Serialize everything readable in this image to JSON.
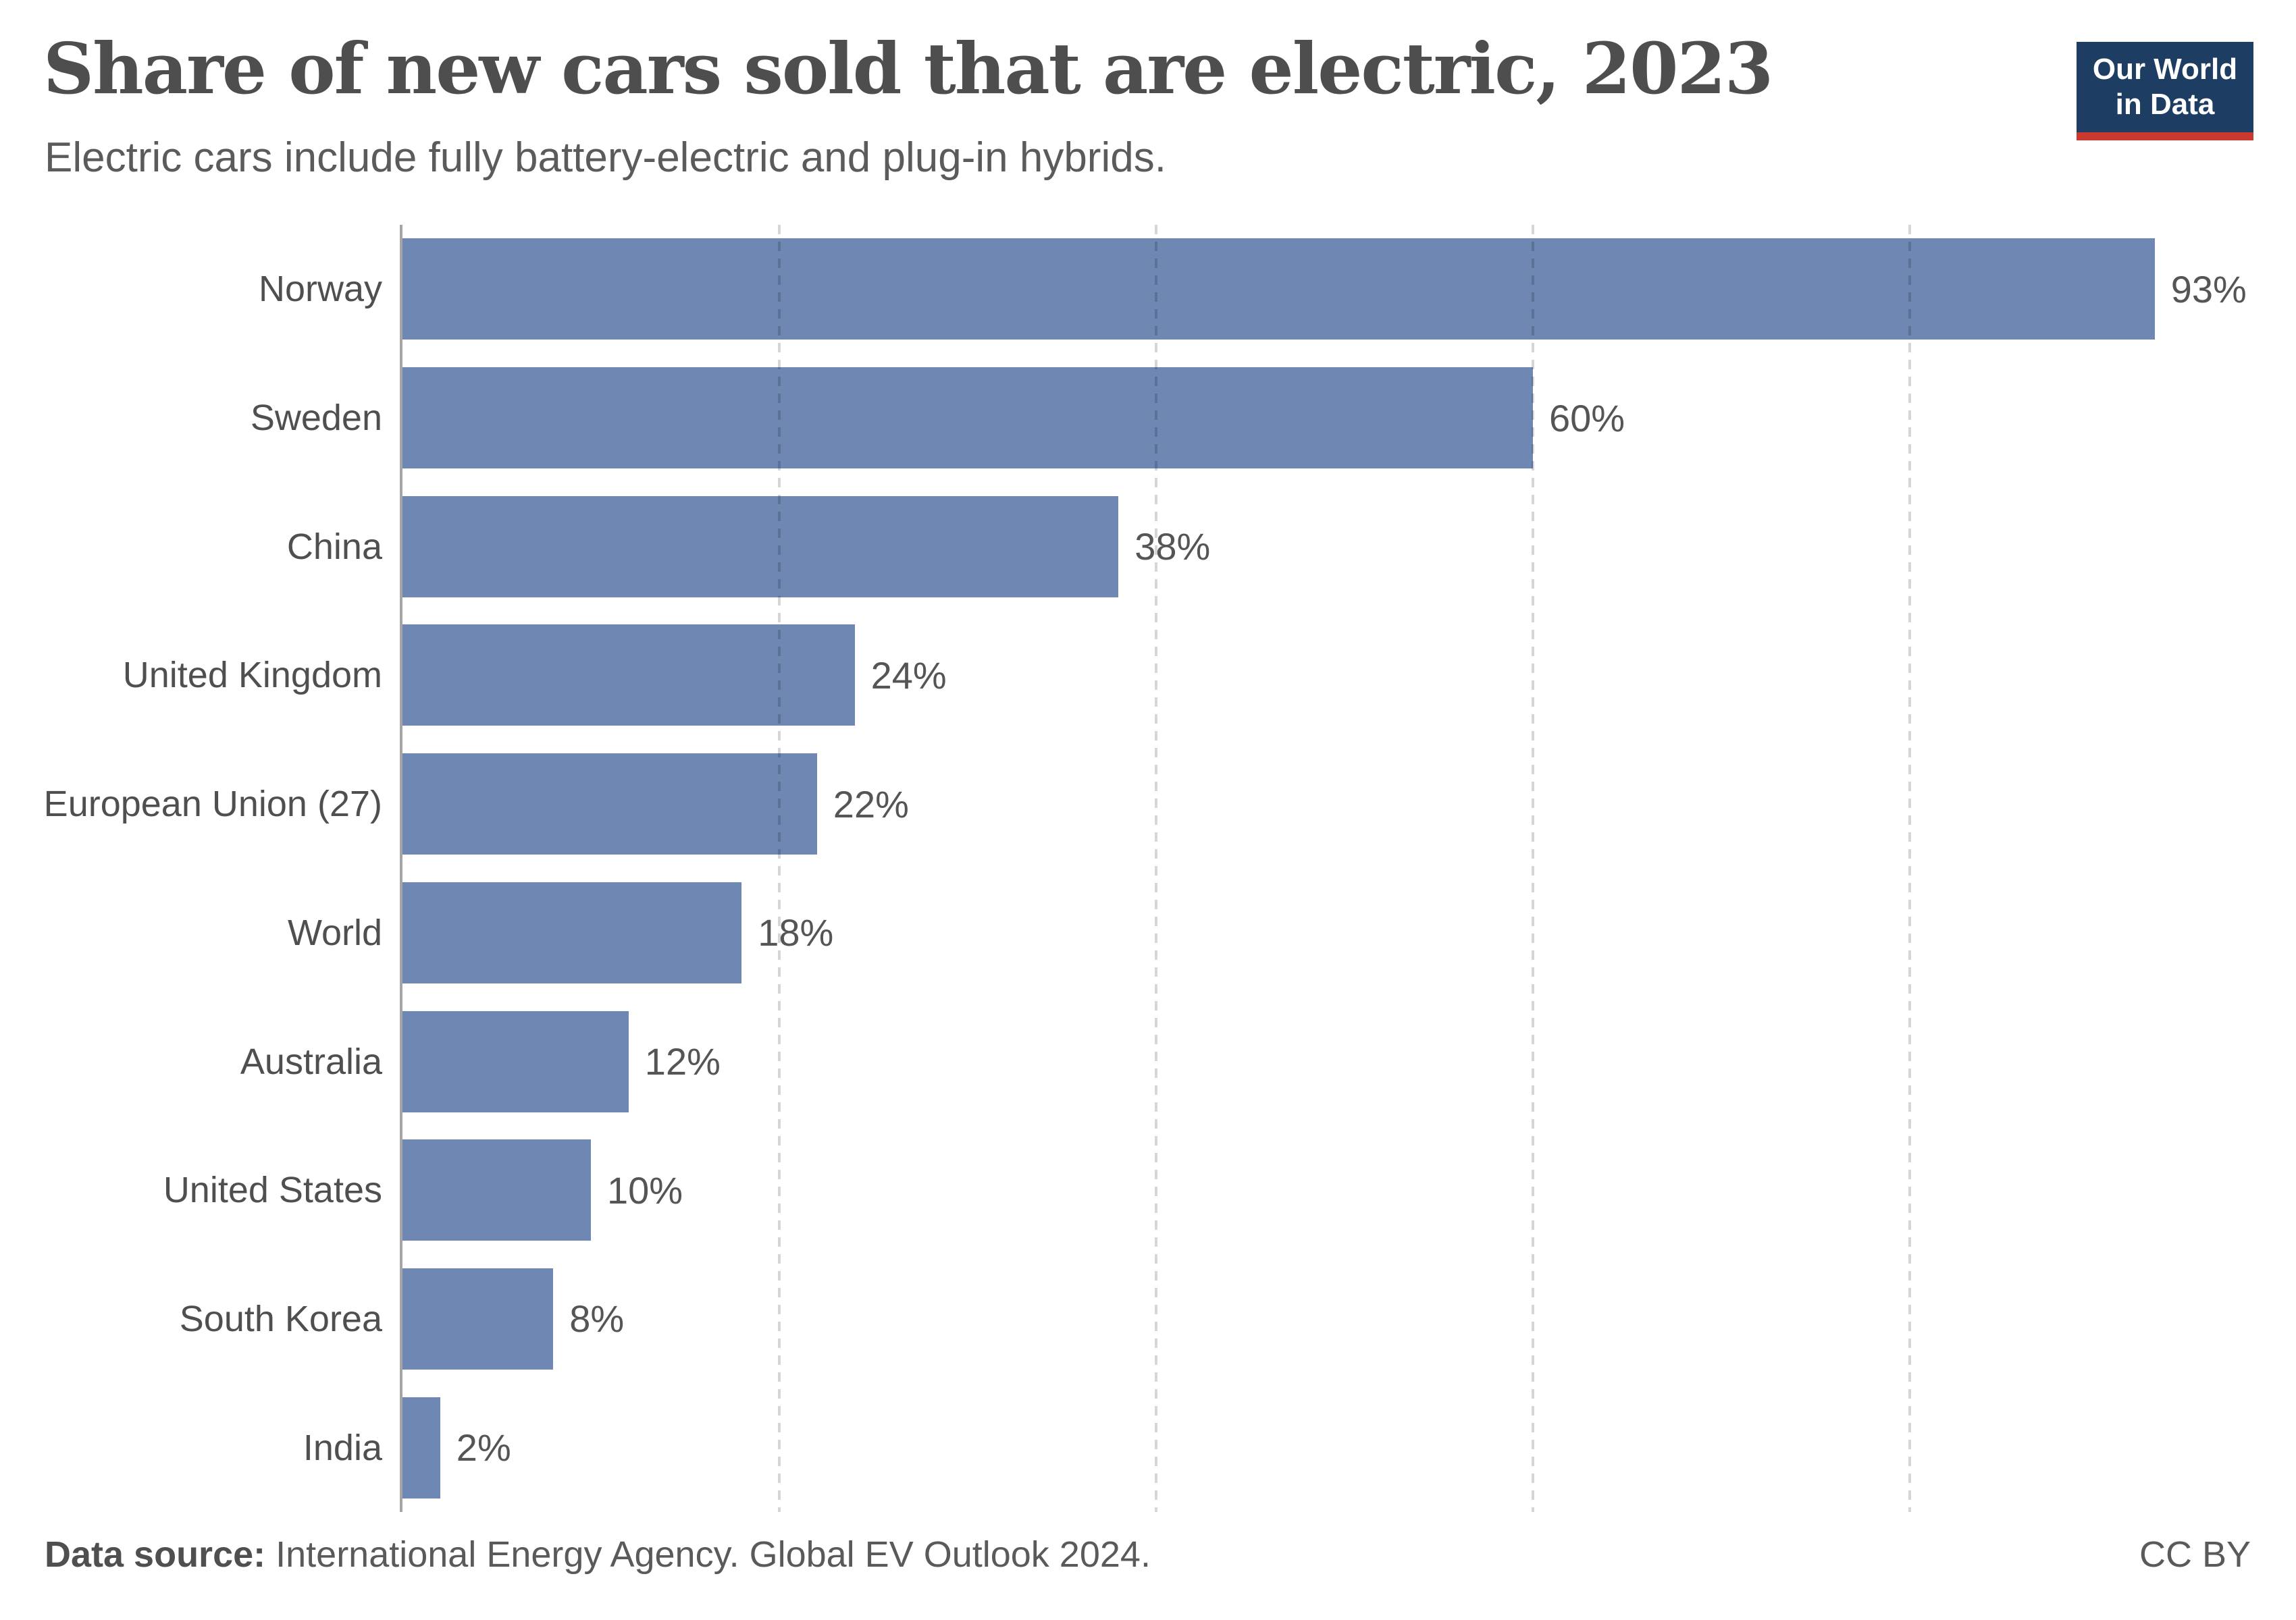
{
  "header": {
    "title": "Share of new cars sold that are electric, 2023",
    "subtitle": "Electric cars include fully battery-electric and plug-in hybrids.",
    "logo": {
      "line1": "Our World",
      "line2": "in Data",
      "bg_color": "#1d3d63",
      "accent_color": "#c9392f"
    }
  },
  "chart_data": {
    "type": "bar",
    "orientation": "horizontal",
    "title": "Share of new cars sold that are electric, 2023",
    "subtitle": "Electric cars include fully battery-electric and plug-in hybrids.",
    "categories": [
      "Norway",
      "Sweden",
      "China",
      "United Kingdom",
      "European Union (27)",
      "World",
      "Australia",
      "United States",
      "South Korea",
      "India"
    ],
    "values": [
      93,
      60,
      38,
      24,
      22,
      18,
      12,
      10,
      8,
      2
    ],
    "value_labels": [
      "93%",
      "60%",
      "38%",
      "24%",
      "22%",
      "18%",
      "12%",
      "10%",
      "8%",
      "2%"
    ],
    "unit": "%",
    "xlim": [
      0,
      100
    ],
    "gridlines_pct": [
      20,
      40,
      60,
      80
    ],
    "grid_style": "dashed-vertical",
    "legend": "none",
    "bar_color": "#6e87b3",
    "axis_color": "#a5a5a5",
    "gridline_color": "rgba(0,0,0,0.16)",
    "category_label_color": "#4f4f4f",
    "value_label_color": "#555555"
  },
  "footer": {
    "source_label": "Data source:",
    "source_text": " International Energy Agency. Global EV Outlook 2024.",
    "license": "CC BY"
  }
}
